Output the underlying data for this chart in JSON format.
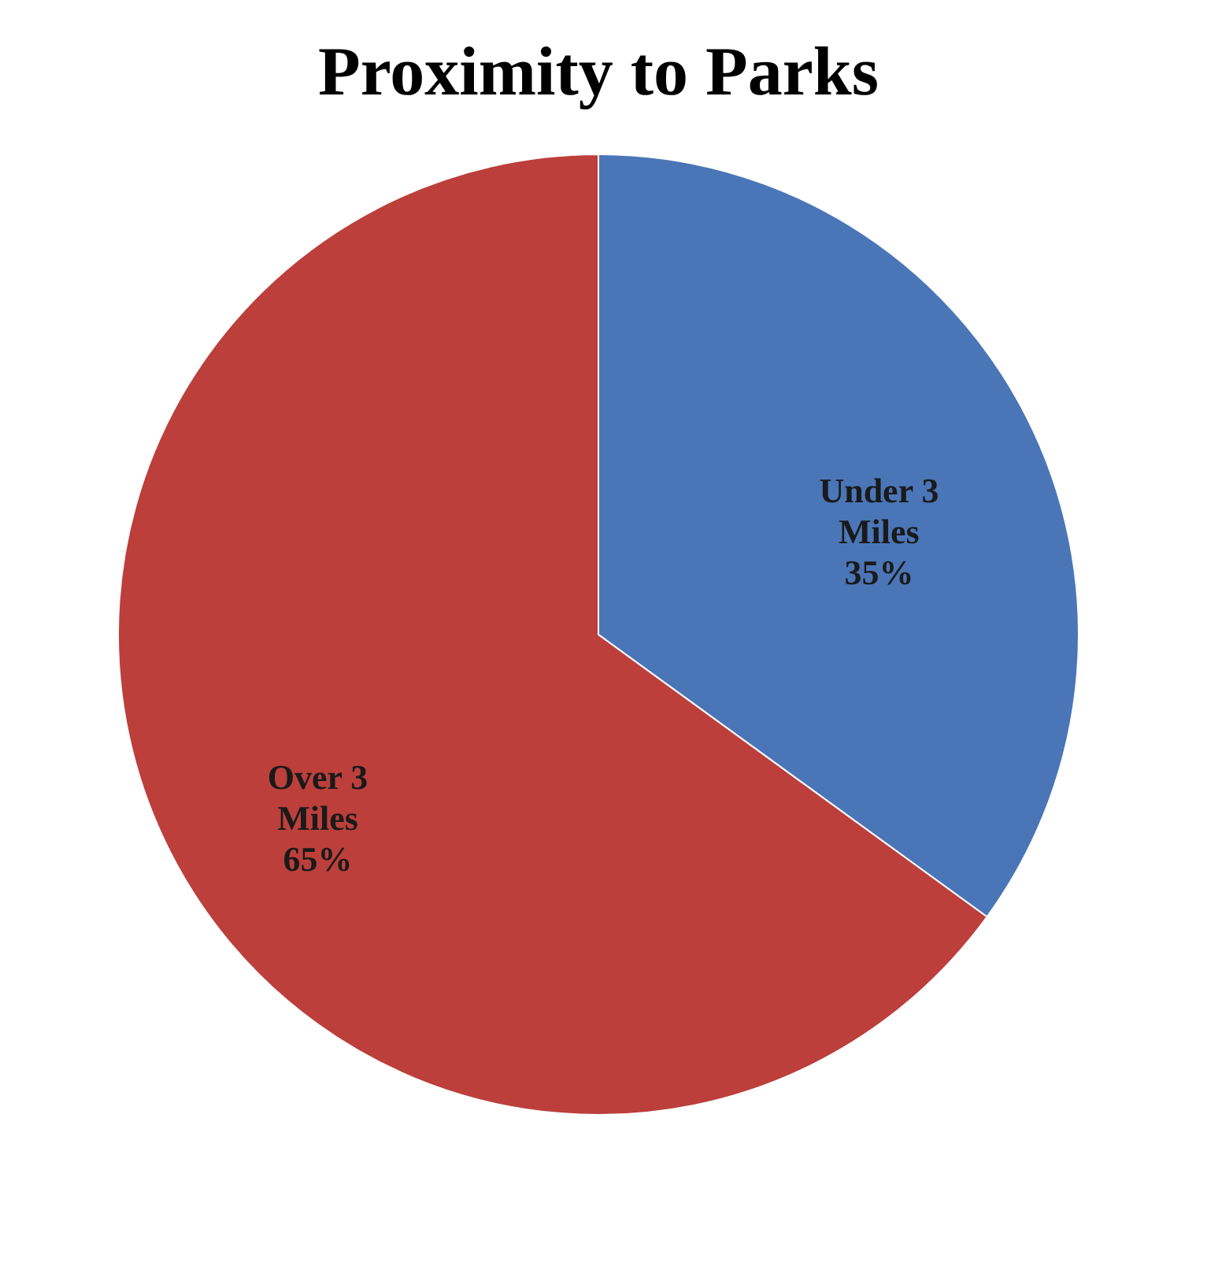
{
  "chart_data": {
    "type": "pie",
    "title": "Proximity to Parks",
    "categories": [
      "Under 3 Miles",
      "Over 3 Miles"
    ],
    "values": [
      35,
      65
    ],
    "value_labels": [
      "35%",
      "65%"
    ],
    "colors": [
      "#4a76b8",
      "#bc3f3b"
    ],
    "legend": false
  }
}
